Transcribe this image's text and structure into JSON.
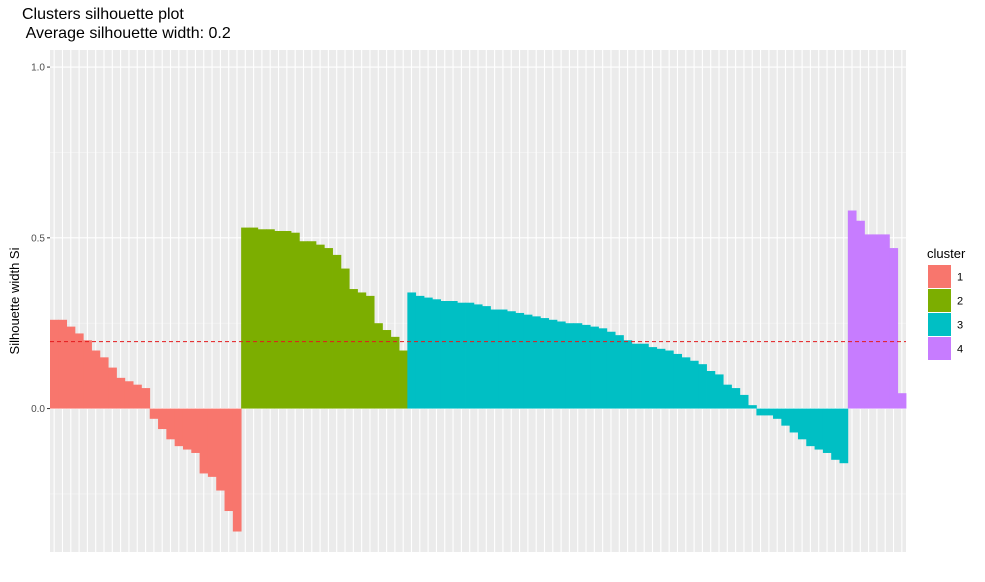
{
  "chart_data": {
    "type": "bar",
    "title": "Clusters silhouette plot",
    "subtitle": " Average silhouette width: 0.2",
    "xlabel": "",
    "ylabel": "Silhouette width Si",
    "ylim": [
      -0.42,
      1.05
    ],
    "yticks": [
      0.0,
      0.5,
      1.0
    ],
    "ytick_labels": [
      "0.0",
      "0.5",
      "1.0"
    ],
    "average_silhouette": 0.196,
    "reference_line": {
      "style": "dashed",
      "color": "#e41a1c"
    },
    "grid": true,
    "legend": {
      "title": "cluster",
      "position": "right",
      "entries": [
        {
          "label": "1",
          "color": "#F8766D"
        },
        {
          "label": "2",
          "color": "#7CAE00"
        },
        {
          "label": "3",
          "color": "#00BFC4"
        },
        {
          "label": "4",
          "color": "#C77CFF"
        }
      ]
    },
    "series": [
      {
        "cluster": "1",
        "color": "#F8766D",
        "values": [
          0.26,
          0.26,
          0.24,
          0.22,
          0.2,
          0.17,
          0.15,
          0.12,
          0.09,
          0.08,
          0.07,
          0.06,
          -0.03,
          -0.06,
          -0.09,
          -0.11,
          -0.12,
          -0.13,
          -0.19,
          -0.2,
          -0.24,
          -0.3,
          -0.36
        ]
      },
      {
        "cluster": "2",
        "color": "#7CAE00",
        "values": [
          0.53,
          0.53,
          0.525,
          0.525,
          0.52,
          0.52,
          0.515,
          0.49,
          0.49,
          0.48,
          0.47,
          0.45,
          0.41,
          0.35,
          0.34,
          0.33,
          0.25,
          0.23,
          0.21,
          0.17
        ]
      },
      {
        "cluster": "3",
        "color": "#00BFC4",
        "values": [
          0.34,
          0.33,
          0.325,
          0.32,
          0.315,
          0.315,
          0.31,
          0.31,
          0.305,
          0.3,
          0.29,
          0.29,
          0.285,
          0.28,
          0.275,
          0.27,
          0.265,
          0.26,
          0.255,
          0.25,
          0.25,
          0.245,
          0.24,
          0.235,
          0.225,
          0.215,
          0.2,
          0.19,
          0.19,
          0.18,
          0.175,
          0.17,
          0.16,
          0.15,
          0.14,
          0.13,
          0.11,
          0.1,
          0.07,
          0.06,
          0.04,
          0.01,
          -0.02,
          -0.02,
          -0.03,
          -0.05,
          -0.07,
          -0.09,
          -0.11,
          -0.12,
          -0.13,
          -0.15,
          -0.16
        ]
      },
      {
        "cluster": "4",
        "color": "#C77CFF",
        "values": [
          0.58,
          0.55,
          0.51,
          0.51,
          0.51,
          0.47,
          0.045
        ]
      }
    ]
  }
}
